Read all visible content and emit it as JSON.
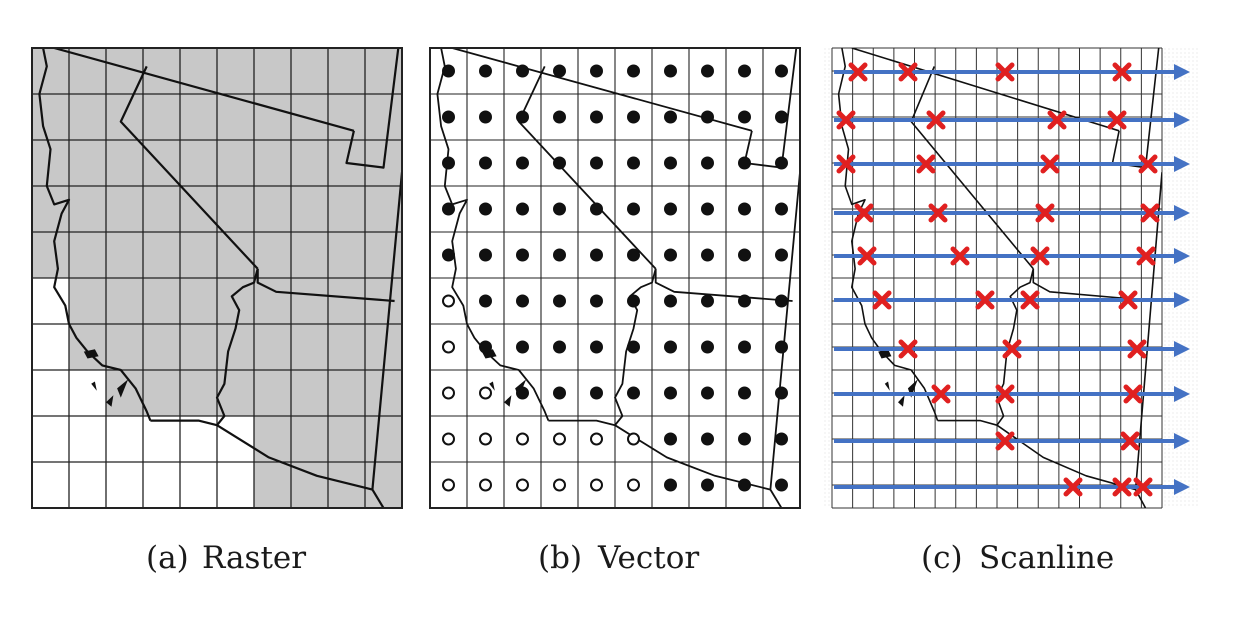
{
  "panels": [
    {
      "id": "raster",
      "caption_tag": "(a)",
      "caption_text": "Raster",
      "grid": {
        "cols": 10,
        "rows": 10
      },
      "shaded_color": "#c8c8c8",
      "clear_color": "#ffffff"
    },
    {
      "id": "vector",
      "caption_tag": "(b)",
      "caption_text": "Vector",
      "grid": {
        "cols": 10,
        "rows": 10
      },
      "filled_point_color": "#111111",
      "hollow_point_color": "#ffffff"
    },
    {
      "id": "scanline",
      "caption_tag": "(c)",
      "caption_text": "Scanline",
      "grid": {
        "cols": 16,
        "rows": 20,
        "scanlines": 10
      },
      "arrow_color": "#4472c4",
      "intersection_color": "#e02020"
    }
  ]
}
